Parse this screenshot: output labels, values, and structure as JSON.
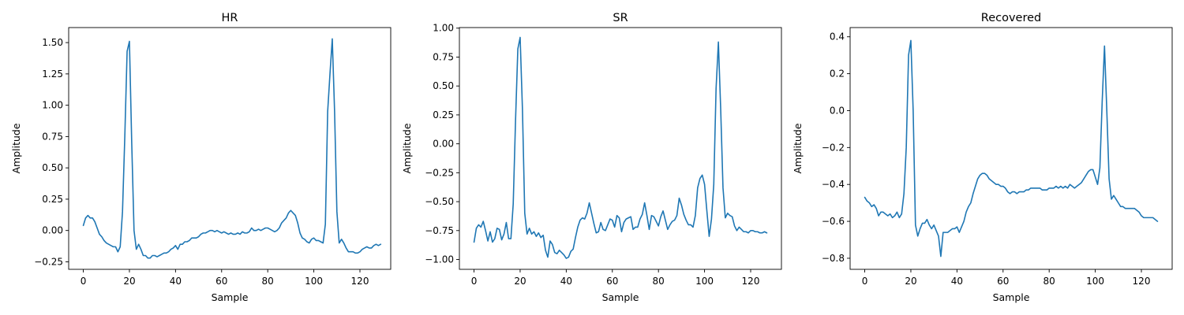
{
  "chart_data": [
    {
      "type": "line",
      "title": "HR",
      "xlabel": "Sample",
      "ylabel": "Amplitude",
      "xlim": [
        -6.35,
        133.35
      ],
      "ylim": [
        -0.31,
        1.62
      ],
      "xticks": [
        0,
        20,
        40,
        60,
        80,
        100,
        120
      ],
      "yticks": [
        -0.25,
        0.0,
        0.25,
        0.5,
        0.75,
        1.0,
        1.25,
        1.5
      ],
      "ytick_labels": [
        "−0.25",
        "0.00",
        "0.25",
        "0.50",
        "0.75",
        "1.00",
        "1.25",
        "1.50"
      ],
      "grid": false,
      "line_color": "#1f77b4",
      "series": [
        {
          "values": [
            0.04,
            0.1,
            0.12,
            0.1,
            0.1,
            0.07,
            0.02,
            -0.03,
            -0.05,
            -0.08,
            -0.1,
            -0.11,
            -0.12,
            -0.13,
            -0.13,
            -0.17,
            -0.13,
            0.15,
            0.75,
            1.43,
            1.51,
            0.7,
            0.0,
            -0.15,
            -0.11,
            -0.15,
            -0.2,
            -0.2,
            -0.22,
            -0.22,
            -0.2,
            -0.2,
            -0.21,
            -0.2,
            -0.19,
            -0.18,
            -0.18,
            -0.17,
            -0.15,
            -0.14,
            -0.12,
            -0.15,
            -0.11,
            -0.11,
            -0.09,
            -0.09,
            -0.08,
            -0.06,
            -0.06,
            -0.06,
            -0.05,
            -0.03,
            -0.02,
            -0.02,
            -0.01,
            0.0,
            0.0,
            -0.01,
            0.0,
            -0.01,
            -0.02,
            -0.01,
            -0.02,
            -0.03,
            -0.02,
            -0.03,
            -0.03,
            -0.02,
            -0.03,
            -0.01,
            -0.02,
            -0.02,
            -0.01,
            0.02,
            0.0,
            0.0,
            0.01,
            0.0,
            0.01,
            0.02,
            0.02,
            0.01,
            0.0,
            -0.01,
            0.0,
            0.02,
            0.06,
            0.08,
            0.1,
            0.14,
            0.16,
            0.14,
            0.12,
            0.06,
            -0.02,
            -0.06,
            -0.07,
            -0.09,
            -0.1,
            -0.07,
            -0.06,
            -0.08,
            -0.08,
            -0.09,
            -0.1,
            0.05,
            0.95,
            1.25,
            1.53,
            0.95,
            0.15,
            -0.1,
            -0.07,
            -0.1,
            -0.14,
            -0.17,
            -0.17,
            -0.17,
            -0.18,
            -0.18,
            -0.17,
            -0.15,
            -0.14,
            -0.13,
            -0.14,
            -0.14,
            -0.12,
            -0.11,
            -0.12,
            -0.11
          ]
        }
      ]
    },
    {
      "type": "line",
      "title": "SR",
      "xlabel": "Sample",
      "ylabel": "Amplitude",
      "xlim": [
        -6.35,
        133.35
      ],
      "ylim": [
        -1.085,
        1.005
      ],
      "xticks": [
        0,
        20,
        40,
        60,
        80,
        100,
        120
      ],
      "yticks": [
        -1.0,
        -0.75,
        -0.5,
        -0.25,
        0.0,
        0.25,
        0.5,
        0.75,
        1.0
      ],
      "ytick_labels": [
        "−1.00",
        "−0.75",
        "−0.50",
        "−0.25",
        "0.00",
        "0.25",
        "0.50",
        "0.75",
        "1.00"
      ],
      "grid": false,
      "line_color": "#1f77b4",
      "series": [
        {
          "values": [
            -0.85,
            -0.73,
            -0.7,
            -0.72,
            -0.67,
            -0.75,
            -0.84,
            -0.76,
            -0.85,
            -0.82,
            -0.73,
            -0.74,
            -0.83,
            -0.78,
            -0.68,
            -0.82,
            -0.82,
            -0.52,
            0.2,
            0.82,
            0.92,
            0.3,
            -0.6,
            -0.78,
            -0.73,
            -0.78,
            -0.76,
            -0.8,
            -0.77,
            -0.81,
            -0.79,
            -0.92,
            -0.98,
            -0.84,
            -0.87,
            -0.94,
            -0.95,
            -0.92,
            -0.94,
            -0.96,
            -0.99,
            -0.98,
            -0.93,
            -0.91,
            -0.81,
            -0.72,
            -0.66,
            -0.64,
            -0.65,
            -0.6,
            -0.51,
            -0.6,
            -0.69,
            -0.77,
            -0.76,
            -0.68,
            -0.74,
            -0.75,
            -0.7,
            -0.65,
            -0.66,
            -0.72,
            -0.62,
            -0.64,
            -0.76,
            -0.68,
            -0.65,
            -0.64,
            -0.63,
            -0.74,
            -0.72,
            -0.72,
            -0.65,
            -0.61,
            -0.51,
            -0.62,
            -0.74,
            -0.62,
            -0.63,
            -0.67,
            -0.71,
            -0.63,
            -0.58,
            -0.66,
            -0.74,
            -0.7,
            -0.67,
            -0.66,
            -0.62,
            -0.47,
            -0.53,
            -0.61,
            -0.66,
            -0.7,
            -0.7,
            -0.72,
            -0.62,
            -0.38,
            -0.3,
            -0.27,
            -0.35,
            -0.58,
            -0.8,
            -0.65,
            -0.35,
            0.48,
            0.88,
            0.3,
            -0.38,
            -0.64,
            -0.6,
            -0.62,
            -0.63,
            -0.71,
            -0.75,
            -0.72,
            -0.74,
            -0.76,
            -0.76,
            -0.77,
            -0.75,
            -0.75,
            -0.76,
            -0.76,
            -0.77,
            -0.77,
            -0.76,
            -0.77
          ]
        }
      ]
    },
    {
      "type": "line",
      "title": "Recovered",
      "xlabel": "Sample",
      "ylabel": "Amplitude",
      "xlim": [
        -6.35,
        133.35
      ],
      "ylim": [
        -0.86,
        0.45
      ],
      "xticks": [
        0,
        20,
        40,
        60,
        80,
        100,
        120
      ],
      "yticks": [
        -0.8,
        -0.6,
        -0.4,
        -0.2,
        0.0,
        0.2,
        0.4
      ],
      "ytick_labels": [
        "−0.8",
        "−0.6",
        "−0.4",
        "−0.2",
        "0.0",
        "0.2",
        "0.4"
      ],
      "grid": false,
      "line_color": "#1f77b4",
      "series": [
        {
          "values": [
            -0.47,
            -0.49,
            -0.5,
            -0.52,
            -0.51,
            -0.53,
            -0.57,
            -0.55,
            -0.55,
            -0.56,
            -0.57,
            -0.56,
            -0.58,
            -0.57,
            -0.55,
            -0.58,
            -0.56,
            -0.45,
            -0.2,
            0.3,
            0.38,
            0.0,
            -0.62,
            -0.68,
            -0.64,
            -0.61,
            -0.61,
            -0.59,
            -0.62,
            -0.64,
            -0.62,
            -0.65,
            -0.68,
            -0.79,
            -0.66,
            -0.66,
            -0.66,
            -0.65,
            -0.64,
            -0.64,
            -0.63,
            -0.66,
            -0.63,
            -0.6,
            -0.55,
            -0.52,
            -0.5,
            -0.45,
            -0.41,
            -0.37,
            -0.35,
            -0.34,
            -0.34,
            -0.35,
            -0.37,
            -0.38,
            -0.39,
            -0.4,
            -0.4,
            -0.41,
            -0.41,
            -0.42,
            -0.44,
            -0.45,
            -0.44,
            -0.44,
            -0.45,
            -0.44,
            -0.44,
            -0.44,
            -0.43,
            -0.43,
            -0.42,
            -0.42,
            -0.42,
            -0.42,
            -0.42,
            -0.43,
            -0.43,
            -0.43,
            -0.42,
            -0.42,
            -0.42,
            -0.41,
            -0.42,
            -0.41,
            -0.42,
            -0.41,
            -0.42,
            -0.4,
            -0.41,
            -0.42,
            -0.41,
            -0.4,
            -0.39,
            -0.37,
            -0.35,
            -0.33,
            -0.32,
            -0.32,
            -0.36,
            -0.4,
            -0.31,
            0.05,
            0.35,
            0.0,
            -0.37,
            -0.48,
            -0.46,
            -0.48,
            -0.5,
            -0.52,
            -0.52,
            -0.53,
            -0.53,
            -0.53,
            -0.53,
            -0.53,
            -0.54,
            -0.55,
            -0.57,
            -0.58,
            -0.58,
            -0.58,
            -0.58,
            -0.58,
            -0.59,
            -0.6
          ]
        }
      ]
    }
  ]
}
